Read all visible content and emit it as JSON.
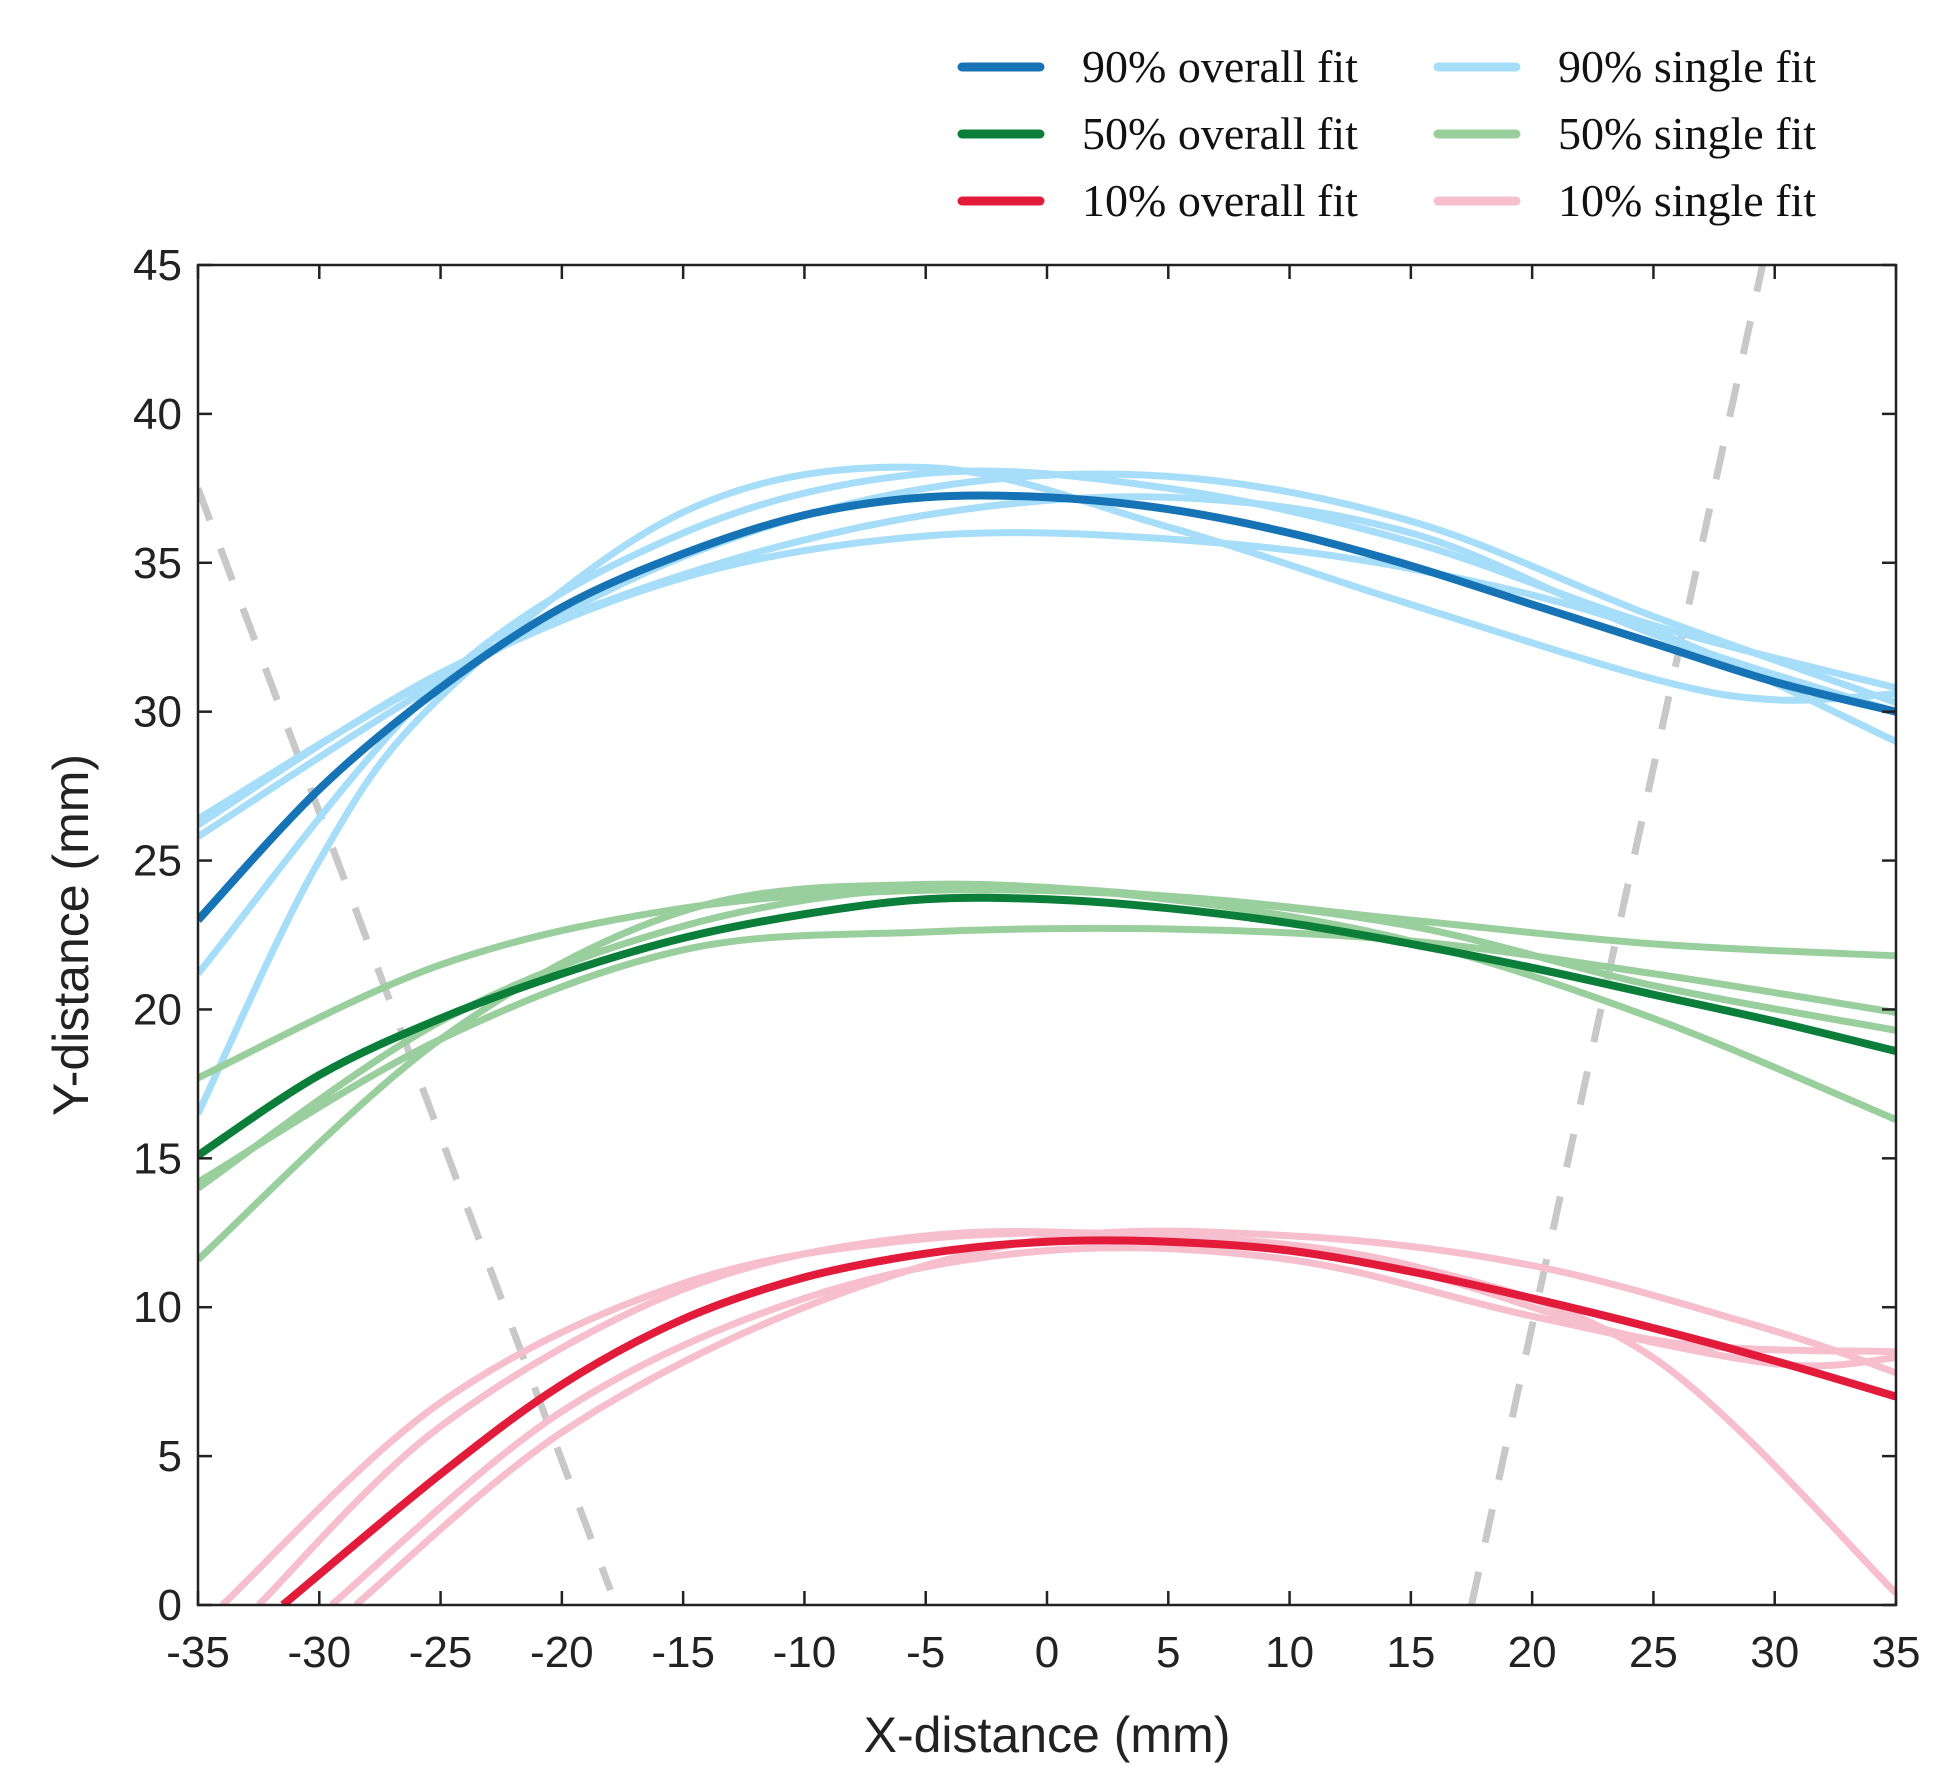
{
  "chart_data": {
    "type": "line",
    "title": "",
    "xlabel": "X-distance (mm)",
    "ylabel": "Y-distance (mm)",
    "xlim": [
      -35,
      35
    ],
    "ylim": [
      0,
      45
    ],
    "xticks": [
      "-35",
      "-30",
      "-25",
      "-20",
      "-15",
      "-10",
      "-5",
      "0",
      "5",
      "10",
      "15",
      "20",
      "25",
      "30",
      "35"
    ],
    "yticks": [
      "0",
      "5",
      "10",
      "15",
      "20",
      "25",
      "30",
      "35",
      "40",
      "45"
    ],
    "grid": false,
    "legend": {
      "placement": "top-right-outside",
      "entries": [
        {
          "label": "90% overall fit",
          "color": "#1673b5"
        },
        {
          "label": "90% single fit",
          "color": "#a6defa"
        },
        {
          "label": "50% overall fit",
          "color": "#0b7f3a"
        },
        {
          "label": "50% single fit",
          "color": "#99cf9c"
        },
        {
          "label": "10% overall fit",
          "color": "#e31b3a"
        },
        {
          "label": "10% single fit",
          "color": "#f7bfce"
        }
      ]
    },
    "series": [
      {
        "name": "90% single fit",
        "group": "single",
        "color": "#a6defa",
        "x": [
          -35,
          -25,
          -15,
          -5,
          5,
          15,
          25,
          35
        ],
        "y": [
          26.4,
          31.2,
          34.5,
          35.9,
          35.8,
          34.8,
          32.7,
          29.0
        ]
      },
      {
        "name": "90% single fit",
        "group": "single",
        "color": "#a6defa",
        "x": [
          -35,
          -25,
          -15,
          -5,
          5,
          15,
          25,
          35
        ],
        "y": [
          25.8,
          31.0,
          35.2,
          37.5,
          37.9,
          36.4,
          33.2,
          30.3
        ]
      },
      {
        "name": "90% single fit",
        "group": "single",
        "color": "#a6defa",
        "x": [
          -35,
          -25,
          -15,
          -5,
          5,
          15,
          25,
          35
        ],
        "y": [
          21.2,
          31.0,
          36.0,
          38.0,
          37.5,
          35.7,
          32.9,
          30.8
        ]
      },
      {
        "name": "90% single fit",
        "group": "single",
        "color": "#a6defa",
        "x": [
          -35,
          -30,
          -25,
          -15,
          -5,
          5,
          15,
          25,
          30,
          35
        ],
        "y": [
          16.5,
          25.0,
          30.5,
          36.7,
          38.2,
          36.2,
          33.6,
          31.1,
          30.4,
          30.6
        ]
      },
      {
        "name": "90% single fit",
        "group": "single",
        "color": "#a6defa",
        "x": [
          -35,
          -25,
          -15,
          -5,
          5,
          15,
          25,
          35
        ],
        "y": [
          26.2,
          31.3,
          34.6,
          36.6,
          37.2,
          36.0,
          32.6,
          30.0
        ]
      },
      {
        "name": "90% overall fit",
        "group": "overall",
        "color": "#1673b5",
        "x": [
          -35,
          -30,
          -25,
          -20,
          -15,
          -10,
          -5,
          0,
          5,
          10,
          15,
          20,
          25,
          30,
          35
        ],
        "y": [
          23.0,
          27.4,
          30.8,
          33.5,
          35.3,
          36.6,
          37.2,
          37.2,
          36.8,
          36.0,
          34.9,
          33.6,
          32.3,
          31.0,
          30.0
        ]
      },
      {
        "name": "50% single fit",
        "group": "single",
        "color": "#99cf9c",
        "x": [
          -35,
          -25,
          -15,
          -5,
          5,
          15,
          25,
          35
        ],
        "y": [
          17.7,
          21.5,
          23.4,
          24.0,
          23.8,
          23.0,
          22.2,
          21.8
        ]
      },
      {
        "name": "50% single fit",
        "group": "single",
        "color": "#99cf9c",
        "x": [
          -35,
          -25,
          -15,
          -5,
          5,
          15,
          25,
          35
        ],
        "y": [
          14.2,
          19.0,
          22.0,
          22.6,
          22.7,
          22.3,
          21.2,
          19.9
        ]
      },
      {
        "name": "50% single fit",
        "group": "single",
        "color": "#99cf9c",
        "x": [
          -35,
          -25,
          -15,
          -5,
          5,
          15,
          25,
          35
        ],
        "y": [
          14.0,
          19.6,
          22.8,
          24.1,
          23.8,
          22.8,
          20.8,
          19.3
        ]
      },
      {
        "name": "50% single fit",
        "group": "single",
        "color": "#99cf9c",
        "x": [
          -35,
          -25,
          -15,
          -5,
          5,
          15,
          25,
          35
        ],
        "y": [
          11.6,
          19.0,
          23.3,
          24.2,
          23.7,
          22.3,
          19.7,
          16.3
        ]
      },
      {
        "name": "50% overall fit",
        "group": "overall",
        "color": "#0b7f3a",
        "x": [
          -35,
          -30,
          -25,
          -20,
          -15,
          -10,
          -5,
          0,
          5,
          10,
          15,
          20,
          25,
          30,
          35
        ],
        "y": [
          15.1,
          17.8,
          19.7,
          21.2,
          22.4,
          23.2,
          23.7,
          23.7,
          23.4,
          22.9,
          22.2,
          21.4,
          20.5,
          19.6,
          18.6
        ]
      },
      {
        "name": "10% single fit",
        "group": "single",
        "color": "#f7bfce",
        "x": [
          -34,
          -25,
          -15,
          -5,
          5,
          15,
          25,
          35
        ],
        "y": [
          0.0,
          6.8,
          10.8,
          12.3,
          12.4,
          11.4,
          8.3,
          0.4
        ]
      },
      {
        "name": "10% single fit",
        "group": "single",
        "color": "#f7bfce",
        "x": [
          -32.5,
          -25,
          -15,
          -5,
          5,
          15,
          25,
          35
        ],
        "y": [
          0.0,
          6.0,
          10.6,
          12.4,
          12.3,
          11.2,
          8.9,
          8.5
        ]
      },
      {
        "name": "10% single fit",
        "group": "single",
        "color": "#f7bfce",
        "x": [
          -29.5,
          -20,
          -10,
          0,
          10,
          20,
          30,
          35
        ],
        "y": [
          0.0,
          6.5,
          10.3,
          11.9,
          11.6,
          9.7,
          8.1,
          8.3
        ]
      },
      {
        "name": "10% single fit",
        "group": "single",
        "color": "#f7bfce",
        "x": [
          -28.5,
          -20,
          -10,
          0,
          10,
          20,
          30,
          35
        ],
        "y": [
          0.0,
          5.8,
          10.0,
          12.3,
          12.4,
          11.4,
          9.2,
          7.8
        ]
      },
      {
        "name": "10% overall fit",
        "group": "overall",
        "color": "#e31b3a",
        "x": [
          -31.5,
          -25,
          -20,
          -15,
          -10,
          -5,
          0,
          5,
          10,
          15,
          20,
          25,
          30,
          35
        ],
        "y": [
          0.0,
          4.4,
          7.4,
          9.6,
          11.0,
          11.8,
          12.2,
          12.2,
          11.9,
          11.2,
          10.3,
          9.3,
          8.2,
          7.0
        ]
      }
    ],
    "reference_lines": [
      {
        "color": "#c8c8c8",
        "style": "dashed",
        "x": [
          -35,
          -18
        ],
        "y": [
          37.5,
          0.5
        ]
      },
      {
        "color": "#c8c8c8",
        "style": "dashed",
        "x": [
          17.5,
          29.5
        ],
        "y": [
          0.0,
          45.0
        ]
      }
    ]
  }
}
